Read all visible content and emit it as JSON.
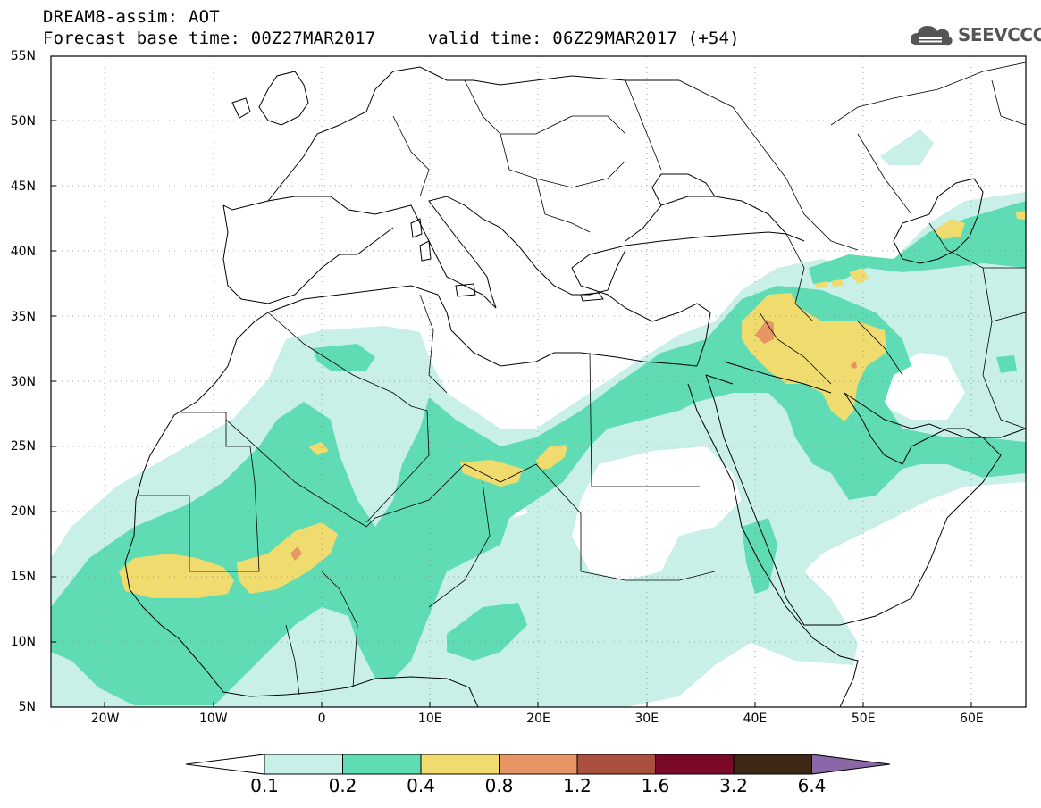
{
  "title": {
    "line1": "DREAM8-assim: AOT",
    "line2": "Forecast base time: 00Z27MAR2017     valid time: 06Z29MAR2017 (+54)"
  },
  "logo": {
    "text": "SEEVCCC",
    "icon": "cloud-icon",
    "color": "#555555"
  },
  "map": {
    "lat_ticks": [
      "55N",
      "50N",
      "45N",
      "40N",
      "35N",
      "30N",
      "25N",
      "20N",
      "15N",
      "10N",
      "5N"
    ],
    "lon_ticks": [
      "20W",
      "10W",
      "0",
      "10E",
      "20E",
      "30E",
      "40E",
      "50E",
      "60E"
    ],
    "lat_range": [
      5,
      55
    ],
    "lon_range": [
      -25,
      65
    ],
    "gridlines": "dotted"
  },
  "legend": {
    "labels": [
      "0.1",
      "0.2",
      "0.4",
      "0.8",
      "1.2",
      "1.6",
      "3.2",
      "6.4"
    ],
    "colors": [
      "#c8f0e8",
      "#5fdcb4",
      "#f0dc6e",
      "#e69664",
      "#aa5041",
      "#7a0a28",
      "#3c2814",
      "#8a68a8"
    ],
    "under_color": "#ffffff"
  }
}
